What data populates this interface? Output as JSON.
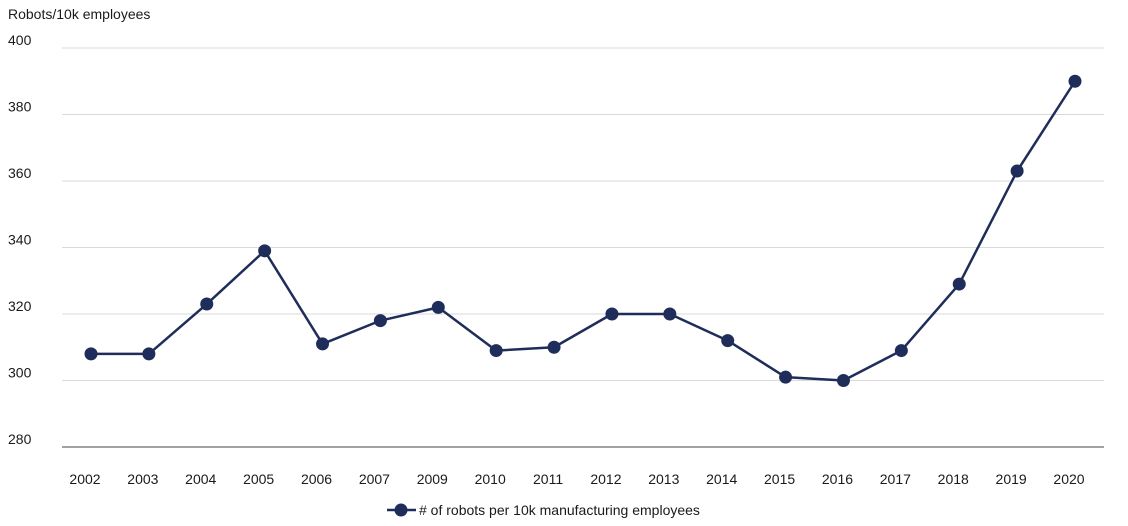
{
  "chart_data": {
    "type": "line",
    "title": "",
    "ylabel": "Robots/10k employees",
    "xlabel": "",
    "categories": [
      "2002",
      "2003",
      "2004",
      "2005",
      "2006",
      "2007",
      "2009",
      "2010",
      "2011",
      "2012",
      "2013",
      "2014",
      "2015",
      "2016",
      "2017",
      "2018",
      "2019",
      "2020"
    ],
    "series": [
      {
        "name": "# of robots per 10k manufacturing employees",
        "values": [
          308,
          308,
          323,
          339,
          311,
          318,
          322,
          309,
          310,
          320,
          320,
          312,
          301,
          300,
          309,
          329,
          363,
          390
        ],
        "color": "#1f2d5a"
      }
    ],
    "ylim": [
      280,
      400
    ],
    "yticks": [
      280,
      300,
      320,
      340,
      360,
      380,
      400
    ],
    "grid": true,
    "legend_position": "bottom-center"
  }
}
